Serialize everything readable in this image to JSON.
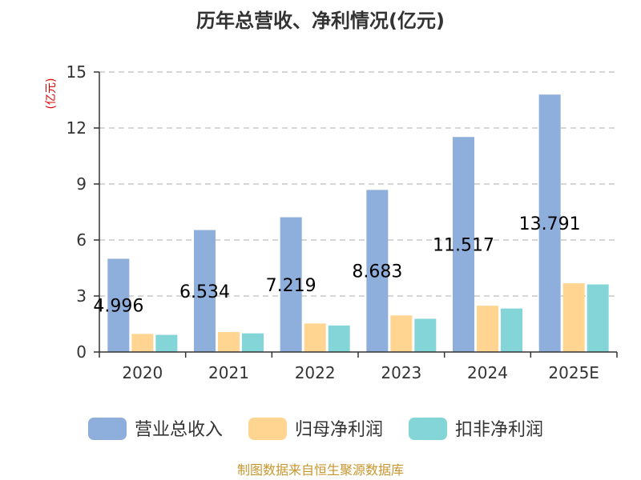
{
  "chart_data": {
    "type": "bar",
    "title": "历年总营收、净利情况(亿元)",
    "unit_label": "(亿元)",
    "categories": [
      "2020",
      "2021",
      "2022",
      "2023",
      "2024",
      "2025E"
    ],
    "ylim": [
      0,
      15
    ],
    "yticks": [
      0,
      3,
      6,
      9,
      12,
      15
    ],
    "grid": true,
    "legend_position": "bottom",
    "series": [
      {
        "name": "营业总收入",
        "color": "#8eaedb",
        "values": [
          4.996,
          6.534,
          7.219,
          8.683,
          11.517,
          13.791
        ],
        "labels": [
          "4.996",
          "6.534",
          "7.219",
          "8.683",
          "11.517",
          "13.791"
        ]
      },
      {
        "name": "归母净利润",
        "color": "#ffd591",
        "values": [
          0.97,
          1.07,
          1.53,
          1.96,
          2.48,
          3.68
        ]
      },
      {
        "name": "扣非净利润",
        "color": "#84d5d7",
        "values": [
          0.92,
          1.0,
          1.42,
          1.78,
          2.33,
          3.62
        ]
      }
    ]
  },
  "footer": {
    "source": "制图数据来自恒生聚源数据库"
  }
}
